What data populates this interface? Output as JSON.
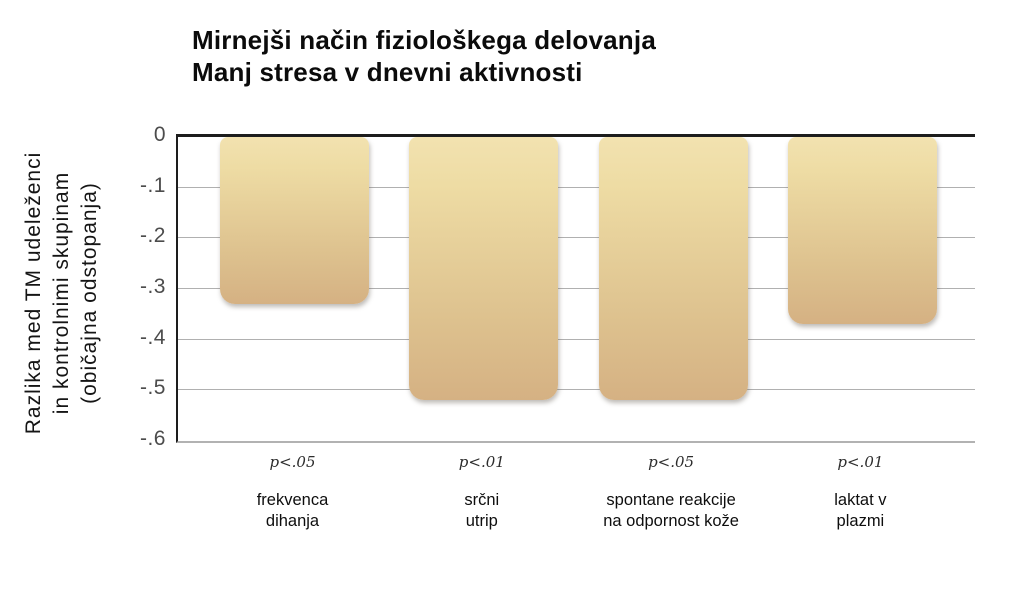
{
  "chart_data": {
    "type": "bar",
    "title_line1": "Mirnejši način fiziološkega delovanja",
    "title_line2": "Manj stresa v dnevni aktivnosti",
    "ylabel_lines": [
      "Razlika med TM udeleženci",
      "in kontrolnimi skupinam",
      "(običajna odstopanja)"
    ],
    "yticks": [
      "0",
      "-.1",
      "-.2",
      "-.3",
      "-.4",
      "-.5",
      "-.6"
    ],
    "ylim": [
      0,
      -0.6
    ],
    "grid": true,
    "legend": "none",
    "bars": [
      {
        "category_lines": [
          "frekvenca",
          "dihanja"
        ],
        "value": -0.33,
        "p_label": "p<.05"
      },
      {
        "category_lines": [
          "srčni",
          "utrip"
        ],
        "value": -0.52,
        "p_label": "p<.01"
      },
      {
        "category_lines": [
          "spontane reakcije",
          "na odpornost kože"
        ],
        "value": -0.52,
        "p_label": "p<.05"
      },
      {
        "category_lines": [
          "laktat v",
          "plazmi"
        ],
        "value": -0.37,
        "p_label": "p<.01"
      }
    ],
    "colors": {
      "bar_gradient_top": "#f2e2b0",
      "bar_gradient_bottom": "#d5b183",
      "axis": "#1d1d1d",
      "gridline": "#b0b0b0",
      "tick_text": "#4c4c4c",
      "title_text": "#0b0b0b"
    }
  }
}
